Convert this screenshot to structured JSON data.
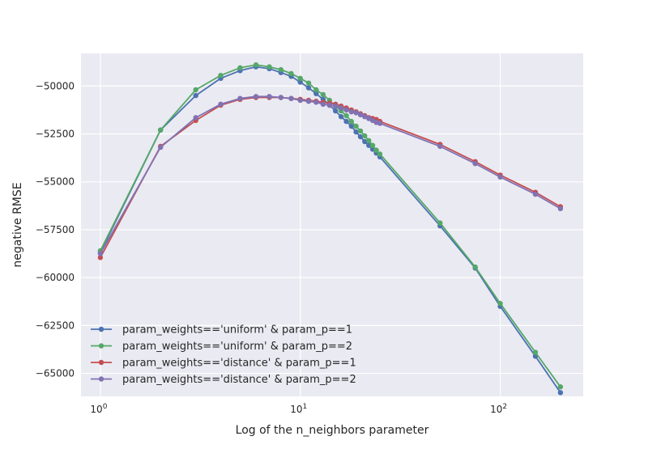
{
  "chart_data": {
    "type": "line",
    "xscale": "log",
    "xlabel": "Log of the n_neighbors parameter",
    "ylabel": "negative RMSE",
    "xlim": [
      0.8,
      260
    ],
    "ylim": [
      -66200,
      -48300
    ],
    "x_ticks": [
      {
        "value": 1,
        "base": "10",
        "exp": "0"
      },
      {
        "value": 10,
        "base": "10",
        "exp": "1"
      },
      {
        "value": 100,
        "base": "10",
        "exp": "2"
      }
    ],
    "y_ticks": [
      {
        "value": -50000,
        "label": "−50000"
      },
      {
        "value": -52500,
        "label": "−52500"
      },
      {
        "value": -55000,
        "label": "−55000"
      },
      {
        "value": -57500,
        "label": "−57500"
      },
      {
        "value": -60000,
        "label": "−60000"
      },
      {
        "value": -62500,
        "label": "−62500"
      },
      {
        "value": -65000,
        "label": "−65000"
      }
    ],
    "grid": true,
    "legend_position": "lower-left",
    "x": [
      1,
      2,
      3,
      4,
      5,
      6,
      7,
      8,
      9,
      10,
      11,
      12,
      13,
      14,
      15,
      16,
      17,
      18,
      19,
      20,
      21,
      22,
      23,
      24,
      25,
      50,
      75,
      100,
      150,
      200
    ],
    "series": [
      {
        "name": "param_weights=='uniform' & param_p==1",
        "color": "#4c72b0",
        "values": [
          -58700,
          -52300,
          -50500,
          -49600,
          -49200,
          -49000,
          -49100,
          -49300,
          -49500,
          -49800,
          -50100,
          -50400,
          -50700,
          -51000,
          -51300,
          -51600,
          -51850,
          -52100,
          -52400,
          -52650,
          -52900,
          -53100,
          -53300,
          -53500,
          -53700,
          -57300,
          -59500,
          -61500,
          -64100,
          -66000
        ]
      },
      {
        "name": "param_weights=='uniform' & param_p==2",
        "color": "#55a868",
        "values": [
          -58600,
          -52300,
          -50200,
          -49450,
          -49050,
          -48900,
          -49000,
          -49150,
          -49350,
          -49600,
          -49850,
          -50200,
          -50450,
          -50750,
          -51050,
          -51300,
          -51550,
          -51850,
          -52100,
          -52350,
          -52600,
          -52850,
          -53100,
          -53350,
          -53550,
          -57150,
          -59450,
          -61350,
          -63900,
          -65700
        ]
      },
      {
        "name": "param_weights=='distance' & param_p==1",
        "color": "#c44e52",
        "values": [
          -58950,
          -53150,
          -51800,
          -51000,
          -50700,
          -50600,
          -50600,
          -50600,
          -50650,
          -50700,
          -50750,
          -50800,
          -50850,
          -50900,
          -50950,
          -51050,
          -51150,
          -51250,
          -51350,
          -51450,
          -51550,
          -51650,
          -51700,
          -51750,
          -51850,
          -53050,
          -53950,
          -54650,
          -55550,
          -56300
        ]
      },
      {
        "name": "param_weights=='distance' & param_p==2",
        "color": "#8172b2",
        "values": [
          -58750,
          -53200,
          -51650,
          -50950,
          -50650,
          -50550,
          -50550,
          -50600,
          -50650,
          -50750,
          -50800,
          -50850,
          -50950,
          -51000,
          -51050,
          -51150,
          -51250,
          -51350,
          -51400,
          -51500,
          -51600,
          -51700,
          -51800,
          -51900,
          -51950,
          -53150,
          -54050,
          -54750,
          -55650,
          -56400
        ]
      }
    ]
  }
}
